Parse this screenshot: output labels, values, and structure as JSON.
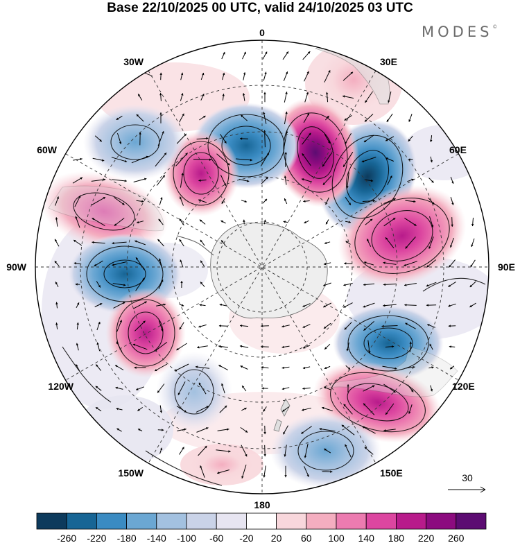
{
  "title": "Base 22/10/2025 00 UTC, valid 24/10/2025 03 UTC",
  "brand": {
    "name": "MODES",
    "mark": "©"
  },
  "map": {
    "projection": "South polar stereographic",
    "longitude_labels": [
      "0",
      "30E",
      "60E",
      "90E",
      "120E",
      "150E",
      "180",
      "150W",
      "120W",
      "90W",
      "60W",
      "30W"
    ],
    "reference_vector": {
      "label": "30"
    }
  },
  "colorbar": {
    "levels": [
      -260,
      -220,
      -180,
      -140,
      -100,
      -60,
      -20,
      20,
      60,
      100,
      140,
      180,
      220,
      260
    ],
    "colors": [
      "#0d3a5c",
      "#176595",
      "#3a8bc2",
      "#6ba7d3",
      "#a3c1e0",
      "#cad3e8",
      "#e7e5f1",
      "#ffffff",
      "#f8d7dc",
      "#f4aec0",
      "#ec7bb0",
      "#dc46a0",
      "#b81b8b",
      "#8c0b7f",
      "#5c0c72"
    ],
    "tick_labels": [
      "-260",
      "-220",
      "-180",
      "-140",
      "-100",
      "-60",
      "-20",
      "20",
      "60",
      "100",
      "140",
      "180",
      "220",
      "260"
    ]
  },
  "anomaly_centers": [
    {
      "name": "high-60e-north",
      "value": 240
    },
    {
      "name": "low-60e",
      "value": -240
    },
    {
      "name": "low-north",
      "value": -170
    },
    {
      "name": "high-north-west",
      "value": 170
    },
    {
      "name": "low-northwest",
      "value": -120
    },
    {
      "name": "high-east",
      "value": 170
    },
    {
      "name": "high-west",
      "value": 140
    },
    {
      "name": "low-west",
      "value": -210
    },
    {
      "name": "high-southwest",
      "value": 170
    },
    {
      "name": "low-southeast",
      "value": -170
    },
    {
      "name": "high-southeast",
      "value": 180
    },
    {
      "name": "low-south",
      "value": -130
    },
    {
      "name": "low-south-west",
      "value": -100
    },
    {
      "name": "high-south",
      "value": 70
    },
    {
      "name": "high-northeast",
      "value": 60
    }
  ],
  "colors": {
    "land": "#eeeeee",
    "coast": "#555555",
    "grid": "#333333",
    "frame": "#000000"
  }
}
